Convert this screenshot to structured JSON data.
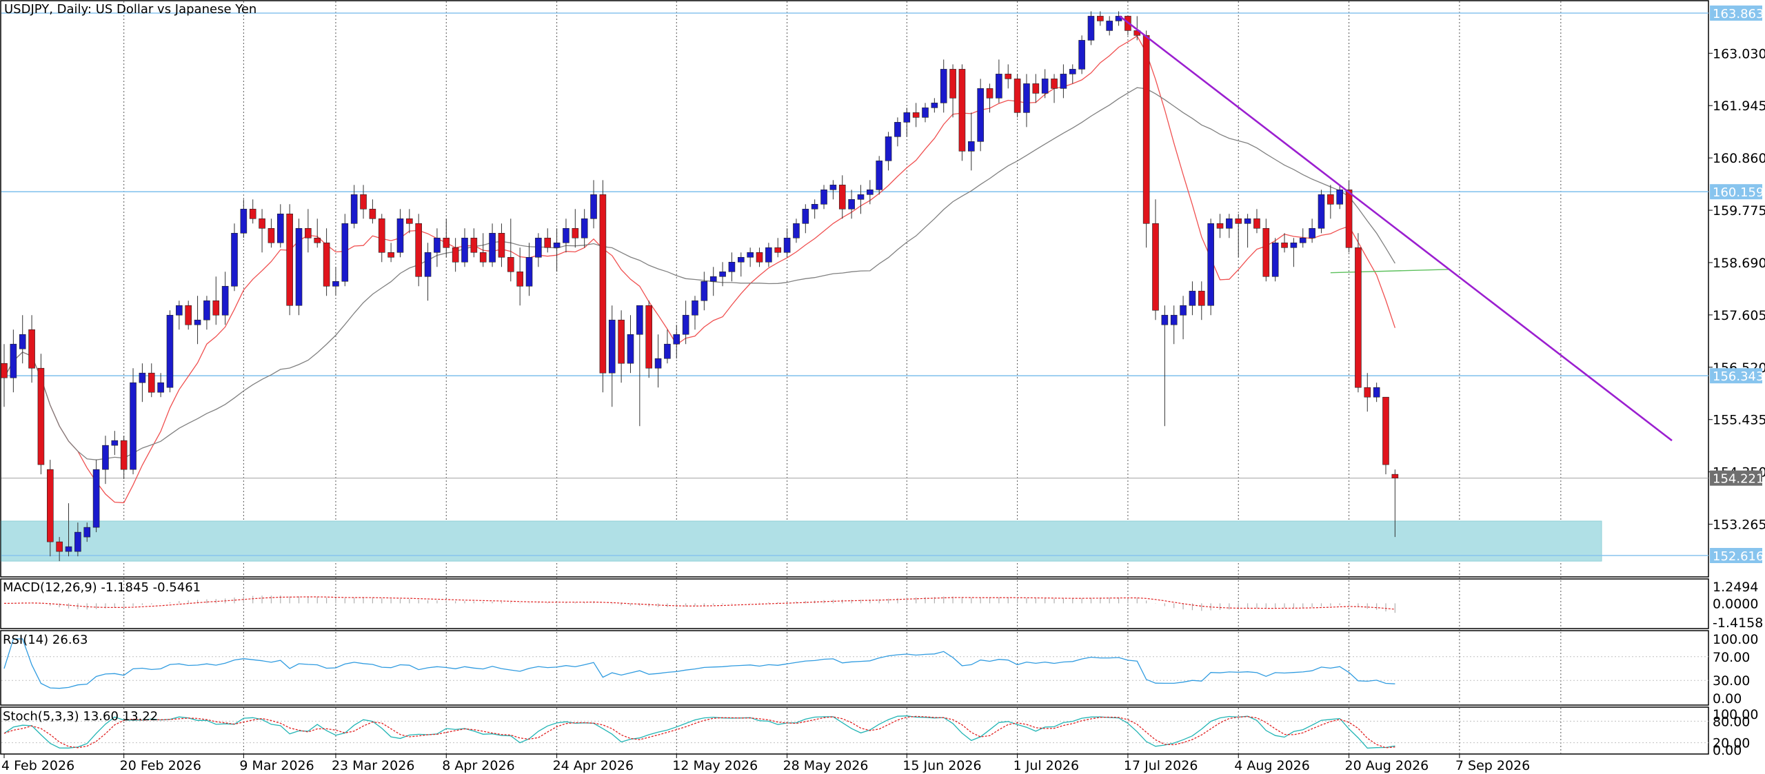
{
  "chart_title": "USDJPY, Daily: US Dollar vs Japanese Yen",
  "colors": {
    "bull": "#1a1acc",
    "bear": "#e0141c",
    "hline": "#87c4ee",
    "zone": "#b0e0e6",
    "ma_fast": "#f05050",
    "ma_slow": "#808080",
    "ma_green": "#5cc05c",
    "trendline": "#9b1fd0",
    "price_tag": "#6f6f6f",
    "rsi": "#2f9be0",
    "stoch_main": "#20b4b4",
    "stoch_signal": "#e02020",
    "macd_hist": "#b0b0b0",
    "macd_signal": "#e02020"
  },
  "main_panel": {
    "y_ticks": [
      "163.030",
      "161.945",
      "160.860",
      "159.775",
      "158.690",
      "157.605",
      "156.520",
      "155.435",
      "154.350",
      "153.265"
    ],
    "price_lines": [
      {
        "label": "163.863",
        "value": 163.863
      },
      {
        "label": "160.159",
        "value": 160.159
      },
      {
        "label": "156.343",
        "value": 156.343
      },
      {
        "label": "152.616",
        "value": 152.616
      }
    ],
    "current_price": {
      "label": "154.221",
      "value": 154.221
    },
    "support_zone": {
      "low": 152.5,
      "high": 153.33
    }
  },
  "x_labels": [
    "4 Feb 2026",
    "20 Feb 2026",
    "9 Mar 2026",
    "23 Mar 2026",
    "8 Apr 2026",
    "24 Apr 2026",
    "12 May 2026",
    "28 May 2026",
    "15 Jun 2026",
    "1 Jul 2026",
    "17 Jul 2026",
    "4 Aug 2026",
    "20 Aug 2026",
    "7 Sep 2026"
  ],
  "macd_panel": {
    "title": "MACD(12,26,9) -1.1845 -0.5461",
    "y_ticks": [
      "1.2494",
      "0.0000",
      "-1.4158"
    ]
  },
  "rsi_panel": {
    "title": "RSI(14) 26.63",
    "y_ticks": [
      "100.00",
      "70.00",
      "30.00",
      "0.00"
    ]
  },
  "stoch_panel": {
    "title": "Stoch(5,3,3) 13.60 13.22",
    "y_ticks": [
      "100.00",
      "80.00",
      "20.00",
      "0.00"
    ]
  },
  "chart_data": {
    "type": "candlestick",
    "title": "USDJPY, Daily: US Dollar vs Japanese Yen",
    "x_tick_labels": [
      "4 Feb 2026",
      "20 Feb 2026",
      "9 Mar 2026",
      "23 Mar 2026",
      "8 Apr 2026",
      "24 Apr 2026",
      "12 May 2026",
      "28 May 2026",
      "15 Jun 2026",
      "1 Jul 2026",
      "17 Jul 2026",
      "4 Aug 2026",
      "20 Aug 2026",
      "7 Sep 2026"
    ],
    "y_range": [
      152.4,
      164.1
    ],
    "trendline": {
      "start": {
        "date": "21 Jul 2026",
        "price": 163.8
      },
      "end": {
        "date": "1 Oct 2026",
        "price": 155.0
      }
    },
    "candles": [
      {
        "o": 156.6,
        "h": 157.0,
        "l": 155.7,
        "c": 156.3
      },
      {
        "o": 156.3,
        "h": 157.3,
        "l": 156.0,
        "c": 157.0
      },
      {
        "o": 156.9,
        "h": 157.6,
        "l": 156.6,
        "c": 157.2
      },
      {
        "o": 157.3,
        "h": 157.6,
        "l": 156.2,
        "c": 156.5
      },
      {
        "o": 156.5,
        "h": 156.8,
        "l": 154.3,
        "c": 154.5
      },
      {
        "o": 154.4,
        "h": 154.6,
        "l": 152.6,
        "c": 152.9
      },
      {
        "o": 152.9,
        "h": 153.0,
        "l": 152.5,
        "c": 152.7
      },
      {
        "o": 152.7,
        "h": 153.7,
        "l": 152.6,
        "c": 152.8
      },
      {
        "o": 152.7,
        "h": 153.3,
        "l": 152.6,
        "c": 153.1
      },
      {
        "o": 153.0,
        "h": 153.3,
        "l": 152.9,
        "c": 153.2
      },
      {
        "o": 153.2,
        "h": 154.6,
        "l": 153.1,
        "c": 154.4
      },
      {
        "o": 154.4,
        "h": 155.1,
        "l": 154.1,
        "c": 154.9
      },
      {
        "o": 154.9,
        "h": 155.2,
        "l": 154.7,
        "c": 155.0
      },
      {
        "o": 155.0,
        "h": 155.1,
        "l": 154.2,
        "c": 154.4
      },
      {
        "o": 154.4,
        "h": 156.5,
        "l": 154.3,
        "c": 156.2
      },
      {
        "o": 156.2,
        "h": 156.6,
        "l": 155.8,
        "c": 156.4
      },
      {
        "o": 156.4,
        "h": 156.6,
        "l": 155.9,
        "c": 156.0
      },
      {
        "o": 156.0,
        "h": 156.4,
        "l": 155.9,
        "c": 156.2
      },
      {
        "o": 156.1,
        "h": 157.7,
        "l": 156.0,
        "c": 157.6
      },
      {
        "o": 157.6,
        "h": 157.9,
        "l": 157.3,
        "c": 157.8
      },
      {
        "o": 157.8,
        "h": 157.9,
        "l": 157.3,
        "c": 157.4
      },
      {
        "o": 157.4,
        "h": 158.0,
        "l": 157.0,
        "c": 157.5
      },
      {
        "o": 157.5,
        "h": 158.0,
        "l": 157.3,
        "c": 157.9
      },
      {
        "o": 157.9,
        "h": 158.4,
        "l": 157.4,
        "c": 157.6
      },
      {
        "o": 157.6,
        "h": 158.5,
        "l": 157.4,
        "c": 158.2
      },
      {
        "o": 158.2,
        "h": 159.5,
        "l": 158.1,
        "c": 159.3
      },
      {
        "o": 159.3,
        "h": 160.0,
        "l": 159.2,
        "c": 159.8
      },
      {
        "o": 159.8,
        "h": 160.0,
        "l": 159.5,
        "c": 159.6
      },
      {
        "o": 159.6,
        "h": 159.8,
        "l": 158.9,
        "c": 159.4
      },
      {
        "o": 159.4,
        "h": 159.6,
        "l": 159.0,
        "c": 159.1
      },
      {
        "o": 159.1,
        "h": 159.9,
        "l": 159.0,
        "c": 159.7
      },
      {
        "o": 159.7,
        "h": 159.9,
        "l": 157.6,
        "c": 157.8
      },
      {
        "o": 157.8,
        "h": 159.6,
        "l": 157.6,
        "c": 159.4
      },
      {
        "o": 159.4,
        "h": 159.8,
        "l": 158.9,
        "c": 159.2
      },
      {
        "o": 159.2,
        "h": 159.6,
        "l": 159.0,
        "c": 159.1
      },
      {
        "o": 159.1,
        "h": 159.4,
        "l": 158.0,
        "c": 158.2
      },
      {
        "o": 158.2,
        "h": 158.6,
        "l": 158.0,
        "c": 158.3
      },
      {
        "o": 158.3,
        "h": 159.7,
        "l": 158.2,
        "c": 159.5
      },
      {
        "o": 159.5,
        "h": 160.3,
        "l": 159.4,
        "c": 160.1
      },
      {
        "o": 160.1,
        "h": 160.3,
        "l": 159.6,
        "c": 159.8
      },
      {
        "o": 159.8,
        "h": 160.0,
        "l": 159.5,
        "c": 159.6
      },
      {
        "o": 159.6,
        "h": 159.7,
        "l": 158.7,
        "c": 158.9
      },
      {
        "o": 158.9,
        "h": 159.1,
        "l": 158.7,
        "c": 158.8
      },
      {
        "o": 158.9,
        "h": 159.8,
        "l": 158.8,
        "c": 159.6
      },
      {
        "o": 159.6,
        "h": 159.8,
        "l": 159.3,
        "c": 159.5
      },
      {
        "o": 159.5,
        "h": 159.7,
        "l": 158.2,
        "c": 158.4
      },
      {
        "o": 158.4,
        "h": 159.1,
        "l": 157.9,
        "c": 158.9
      },
      {
        "o": 158.9,
        "h": 159.4,
        "l": 158.6,
        "c": 159.2
      },
      {
        "o": 159.2,
        "h": 159.6,
        "l": 158.8,
        "c": 159.0
      },
      {
        "o": 159.0,
        "h": 159.2,
        "l": 158.5,
        "c": 158.7
      },
      {
        "o": 158.7,
        "h": 159.4,
        "l": 158.6,
        "c": 159.2
      },
      {
        "o": 159.2,
        "h": 159.4,
        "l": 158.8,
        "c": 158.9
      },
      {
        "o": 158.9,
        "h": 159.3,
        "l": 158.6,
        "c": 158.7
      },
      {
        "o": 158.7,
        "h": 159.5,
        "l": 158.6,
        "c": 159.3
      },
      {
        "o": 159.3,
        "h": 159.5,
        "l": 158.6,
        "c": 158.8
      },
      {
        "o": 158.8,
        "h": 159.6,
        "l": 158.3,
        "c": 158.5
      },
      {
        "o": 158.5,
        "h": 159.0,
        "l": 157.8,
        "c": 158.2
      },
      {
        "o": 158.2,
        "h": 159.1,
        "l": 158.0,
        "c": 158.8
      },
      {
        "o": 158.8,
        "h": 159.3,
        "l": 158.6,
        "c": 159.2
      },
      {
        "o": 159.2,
        "h": 159.4,
        "l": 158.9,
        "c": 159.0
      },
      {
        "o": 159.0,
        "h": 159.4,
        "l": 158.5,
        "c": 159.1
      },
      {
        "o": 159.1,
        "h": 159.6,
        "l": 158.9,
        "c": 159.4
      },
      {
        "o": 159.4,
        "h": 159.8,
        "l": 159.0,
        "c": 159.2
      },
      {
        "o": 159.2,
        "h": 159.8,
        "l": 159.0,
        "c": 159.6
      },
      {
        "o": 159.6,
        "h": 160.4,
        "l": 159.4,
        "c": 160.1
      },
      {
        "o": 160.1,
        "h": 160.4,
        "l": 156.0,
        "c": 156.4
      },
      {
        "o": 156.4,
        "h": 157.8,
        "l": 155.7,
        "c": 157.5
      },
      {
        "o": 157.5,
        "h": 157.7,
        "l": 156.2,
        "c": 156.6
      },
      {
        "o": 156.6,
        "h": 157.6,
        "l": 156.4,
        "c": 157.2
      },
      {
        "o": 157.2,
        "h": 157.8,
        "l": 155.3,
        "c": 157.8
      },
      {
        "o": 157.8,
        "h": 157.9,
        "l": 156.3,
        "c": 156.5
      },
      {
        "o": 156.5,
        "h": 157.2,
        "l": 156.1,
        "c": 156.7
      },
      {
        "o": 156.7,
        "h": 157.3,
        "l": 156.6,
        "c": 157.0
      },
      {
        "o": 157.0,
        "h": 157.4,
        "l": 156.7,
        "c": 157.2
      },
      {
        "o": 157.2,
        "h": 157.9,
        "l": 157.0,
        "c": 157.6
      },
      {
        "o": 157.6,
        "h": 158.0,
        "l": 157.3,
        "c": 157.9
      },
      {
        "o": 157.9,
        "h": 158.5,
        "l": 157.7,
        "c": 158.3
      },
      {
        "o": 158.3,
        "h": 158.6,
        "l": 158.0,
        "c": 158.4
      },
      {
        "o": 158.4,
        "h": 158.7,
        "l": 158.2,
        "c": 158.5
      },
      {
        "o": 158.5,
        "h": 158.9,
        "l": 158.3,
        "c": 158.7
      },
      {
        "o": 158.7,
        "h": 158.9,
        "l": 158.4,
        "c": 158.8
      },
      {
        "o": 158.8,
        "h": 159.0,
        "l": 158.6,
        "c": 158.9
      },
      {
        "o": 158.9,
        "h": 159.0,
        "l": 158.6,
        "c": 158.7
      },
      {
        "o": 158.7,
        "h": 159.1,
        "l": 158.6,
        "c": 159.0
      },
      {
        "o": 159.0,
        "h": 159.2,
        "l": 158.8,
        "c": 158.9
      },
      {
        "o": 158.9,
        "h": 159.4,
        "l": 158.8,
        "c": 159.2
      },
      {
        "o": 159.2,
        "h": 159.6,
        "l": 159.1,
        "c": 159.5
      },
      {
        "o": 159.5,
        "h": 159.9,
        "l": 159.3,
        "c": 159.8
      },
      {
        "o": 159.8,
        "h": 160.0,
        "l": 159.6,
        "c": 159.9
      },
      {
        "o": 159.9,
        "h": 160.3,
        "l": 159.8,
        "c": 160.2
      },
      {
        "o": 160.2,
        "h": 160.4,
        "l": 160.0,
        "c": 160.3
      },
      {
        "o": 160.3,
        "h": 160.5,
        "l": 159.6,
        "c": 159.8
      },
      {
        "o": 159.8,
        "h": 160.2,
        "l": 159.6,
        "c": 160.0
      },
      {
        "o": 160.0,
        "h": 160.3,
        "l": 159.7,
        "c": 160.1
      },
      {
        "o": 160.1,
        "h": 160.4,
        "l": 159.9,
        "c": 160.2
      },
      {
        "o": 160.2,
        "h": 160.9,
        "l": 160.1,
        "c": 160.8
      },
      {
        "o": 160.8,
        "h": 161.4,
        "l": 160.6,
        "c": 161.3
      },
      {
        "o": 161.3,
        "h": 161.7,
        "l": 161.1,
        "c": 161.6
      },
      {
        "o": 161.6,
        "h": 161.9,
        "l": 161.3,
        "c": 161.8
      },
      {
        "o": 161.8,
        "h": 162.0,
        "l": 161.5,
        "c": 161.7
      },
      {
        "o": 161.7,
        "h": 162.0,
        "l": 161.6,
        "c": 161.9
      },
      {
        "o": 161.9,
        "h": 162.1,
        "l": 161.8,
        "c": 162.0
      },
      {
        "o": 162.0,
        "h": 162.9,
        "l": 161.8,
        "c": 162.7
      },
      {
        "o": 162.7,
        "h": 162.8,
        "l": 161.7,
        "c": 162.1
      },
      {
        "o": 162.7,
        "h": 162.8,
        "l": 160.8,
        "c": 161.0
      },
      {
        "o": 161.0,
        "h": 161.8,
        "l": 160.6,
        "c": 161.2
      },
      {
        "o": 161.2,
        "h": 162.5,
        "l": 161.0,
        "c": 162.3
      },
      {
        "o": 162.3,
        "h": 162.4,
        "l": 161.8,
        "c": 162.1
      },
      {
        "o": 162.1,
        "h": 162.9,
        "l": 162.0,
        "c": 162.6
      },
      {
        "o": 162.6,
        "h": 162.8,
        "l": 162.3,
        "c": 162.5
      },
      {
        "o": 162.5,
        "h": 162.6,
        "l": 161.7,
        "c": 161.8
      },
      {
        "o": 161.8,
        "h": 162.6,
        "l": 161.5,
        "c": 162.4
      },
      {
        "o": 162.4,
        "h": 162.6,
        "l": 162.0,
        "c": 162.2
      },
      {
        "o": 162.2,
        "h": 162.7,
        "l": 162.1,
        "c": 162.5
      },
      {
        "o": 162.5,
        "h": 162.6,
        "l": 162.0,
        "c": 162.3
      },
      {
        "o": 162.3,
        "h": 162.8,
        "l": 162.1,
        "c": 162.6
      },
      {
        "o": 162.6,
        "h": 162.8,
        "l": 162.4,
        "c": 162.7
      },
      {
        "o": 162.7,
        "h": 163.4,
        "l": 162.6,
        "c": 163.3
      },
      {
        "o": 163.3,
        "h": 163.9,
        "l": 163.2,
        "c": 163.8
      },
      {
        "o": 163.8,
        "h": 163.9,
        "l": 163.6,
        "c": 163.7
      },
      {
        "o": 163.5,
        "h": 163.8,
        "l": 163.4,
        "c": 163.7
      },
      {
        "o": 163.7,
        "h": 163.9,
        "l": 163.6,
        "c": 163.8
      },
      {
        "o": 163.8,
        "h": 163.8,
        "l": 163.4,
        "c": 163.5
      },
      {
        "o": 163.5,
        "h": 163.8,
        "l": 163.3,
        "c": 163.4
      },
      {
        "o": 163.4,
        "h": 163.5,
        "l": 159.0,
        "c": 159.5
      },
      {
        "o": 159.5,
        "h": 160.0,
        "l": 157.5,
        "c": 157.7
      },
      {
        "o": 157.4,
        "h": 157.8,
        "l": 155.3,
        "c": 157.6
      },
      {
        "o": 157.4,
        "h": 157.8,
        "l": 157.0,
        "c": 157.6
      },
      {
        "o": 157.6,
        "h": 158.0,
        "l": 157.1,
        "c": 157.8
      },
      {
        "o": 157.8,
        "h": 158.3,
        "l": 157.6,
        "c": 158.1
      },
      {
        "o": 158.1,
        "h": 158.3,
        "l": 157.5,
        "c": 157.8
      },
      {
        "o": 157.8,
        "h": 159.6,
        "l": 157.6,
        "c": 159.5
      },
      {
        "o": 159.5,
        "h": 159.7,
        "l": 159.2,
        "c": 159.4
      },
      {
        "o": 159.4,
        "h": 159.7,
        "l": 159.2,
        "c": 159.6
      },
      {
        "o": 159.6,
        "h": 159.7,
        "l": 158.8,
        "c": 159.5
      },
      {
        "o": 159.5,
        "h": 159.7,
        "l": 159.0,
        "c": 159.6
      },
      {
        "o": 159.6,
        "h": 159.8,
        "l": 159.3,
        "c": 159.4
      },
      {
        "o": 159.4,
        "h": 159.6,
        "l": 158.3,
        "c": 158.4
      },
      {
        "o": 158.4,
        "h": 159.2,
        "l": 158.3,
        "c": 159.1
      },
      {
        "o": 159.1,
        "h": 159.3,
        "l": 158.9,
        "c": 159.0
      },
      {
        "o": 159.0,
        "h": 159.2,
        "l": 158.6,
        "c": 159.1
      },
      {
        "o": 159.1,
        "h": 159.4,
        "l": 159.0,
        "c": 159.2
      },
      {
        "o": 159.2,
        "h": 159.6,
        "l": 159.1,
        "c": 159.4
      },
      {
        "o": 159.4,
        "h": 160.2,
        "l": 159.3,
        "c": 160.1
      },
      {
        "o": 160.1,
        "h": 160.3,
        "l": 159.6,
        "c": 159.9
      },
      {
        "o": 159.9,
        "h": 160.3,
        "l": 159.8,
        "c": 160.2
      },
      {
        "o": 160.2,
        "h": 160.4,
        "l": 158.9,
        "c": 159.0
      },
      {
        "o": 159.0,
        "h": 159.3,
        "l": 156.0,
        "c": 156.1
      },
      {
        "o": 156.1,
        "h": 156.4,
        "l": 155.6,
        "c": 155.9
      },
      {
        "o": 155.9,
        "h": 156.2,
        "l": 155.8,
        "c": 156.1
      },
      {
        "o": 155.9,
        "h": 155.9,
        "l": 154.3,
        "c": 154.5
      },
      {
        "o": 154.3,
        "h": 154.4,
        "l": 153.0,
        "c": 154.221
      }
    ],
    "moving_averages": [
      {
        "color": "#f05050",
        "role": "fast"
      },
      {
        "color": "#808080",
        "role": "slow"
      }
    ]
  }
}
